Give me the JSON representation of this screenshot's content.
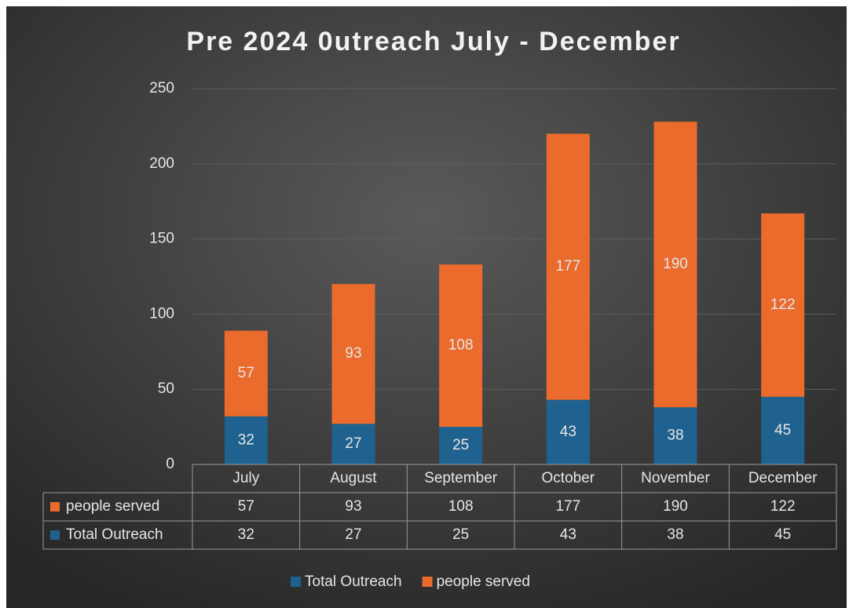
{
  "chart_data": {
    "type": "stacked_bar",
    "title": "Pre 2024 0utreach July - December",
    "categories": [
      "July",
      "August",
      "September",
      "October",
      "November",
      "December"
    ],
    "series": [
      {
        "name": "Total Outreach",
        "color": "#1f6290",
        "values": [
          32,
          27,
          25,
          43,
          38,
          45
        ]
      },
      {
        "name": "people served",
        "color": "#ea6b2b",
        "values": [
          57,
          93,
          108,
          177,
          190,
          122
        ]
      }
    ],
    "ylim": [
      0,
      250
    ],
    "yticks": [
      0,
      50,
      100,
      150,
      200,
      250
    ],
    "grid": true,
    "data_table": true,
    "legend": "bottom"
  }
}
